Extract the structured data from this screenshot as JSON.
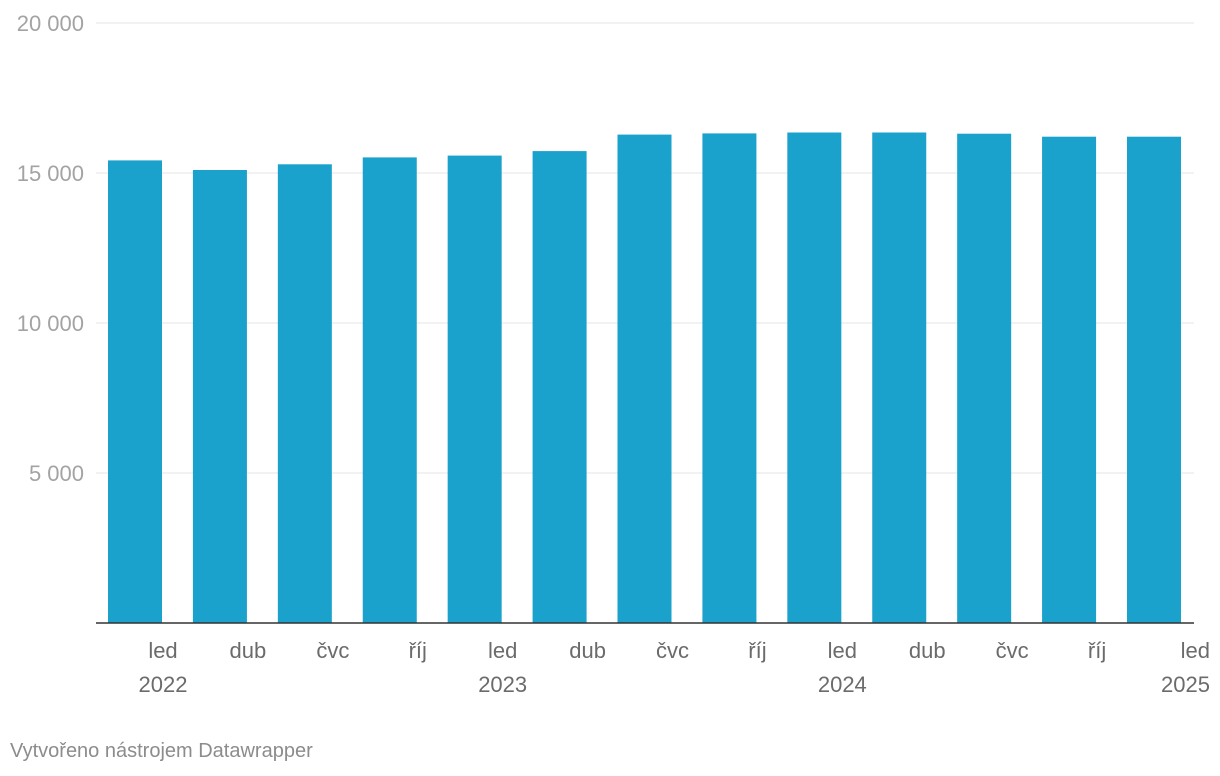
{
  "chart_data": {
    "type": "bar",
    "categories": [
      "led 2022",
      "dub 2022",
      "čvc 2022",
      "říj 2022",
      "led 2023",
      "dub 2023",
      "čvc 2023",
      "říj 2023",
      "led 2024",
      "dub 2024",
      "čvc 2024",
      "říj 2024",
      "led 2025"
    ],
    "x_tick_labels": [
      [
        "led",
        "2022"
      ],
      [
        "dub"
      ],
      [
        "čvc"
      ],
      [
        "říj"
      ],
      [
        "led",
        "2023"
      ],
      [
        "dub"
      ],
      [
        "čvc"
      ],
      [
        "říj"
      ],
      [
        "led",
        "2024"
      ],
      [
        "dub"
      ],
      [
        "čvc"
      ],
      [
        "říj"
      ],
      [
        "led",
        "2025"
      ]
    ],
    "values": [
      15420,
      15100,
      15290,
      15520,
      15580,
      15730,
      16280,
      16320,
      16350,
      16350,
      16310,
      16210,
      16210
    ],
    "ylim": [
      0,
      20000
    ],
    "y_ticks": [
      5000,
      10000,
      15000,
      20000
    ],
    "y_tick_labels": [
      "5 000",
      "10 000",
      "15 000",
      "20 000"
    ],
    "title": "",
    "xlabel": "",
    "ylabel": "",
    "grid": true,
    "bar_color": "#1aa1cc"
  },
  "credit": "Vytvořeno nástrojem Datawrapper"
}
